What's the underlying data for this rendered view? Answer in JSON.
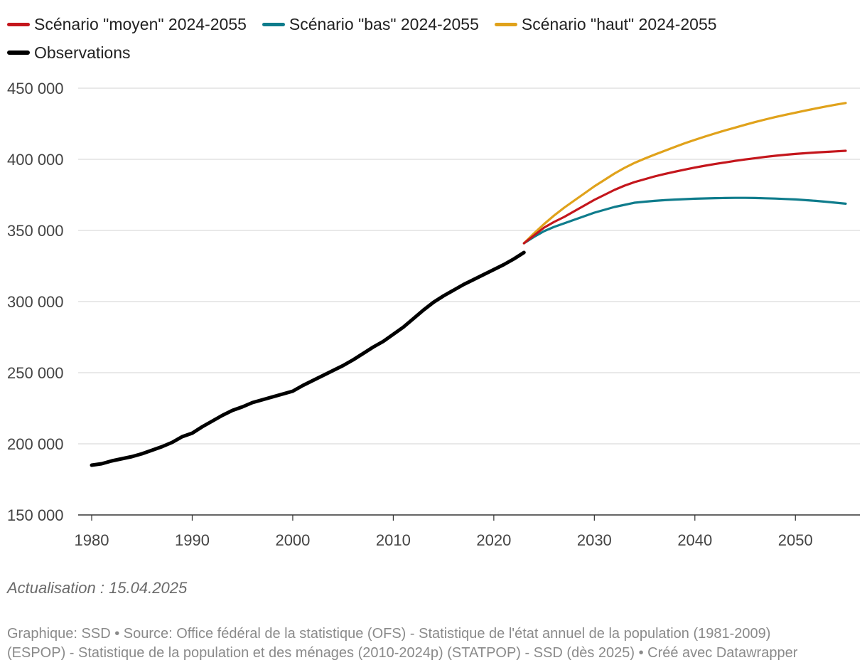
{
  "legend": {
    "moyen": "Scénario \"moyen\" 2024-2055",
    "bas": "Scénario \"bas\" 2024-2055",
    "haut": "Scénario \"haut\" 2024-2055",
    "observations": "Observations"
  },
  "colors": {
    "moyen": "#c4161c",
    "bas": "#0f7c8c",
    "haut": "#e0a21b",
    "observations": "#000000",
    "grid": "#d3d3d3"
  },
  "footer": {
    "updated": "Actualisation : 15.04.2025",
    "source_line1": "Graphique: SSD • Source: Office fédéral de la statistique (OFS) - Statistique de l'état annuel de la population (1981-2009)",
    "source_line2": "(ESPOP) - Statistique de la population et des ménages (2010-2024p) (STATPOP) - SSD (dès 2025) • Créé avec Datawrapper"
  },
  "chart_data": {
    "type": "line",
    "title": "",
    "xlabel": "",
    "ylabel": "",
    "xlim": [
      1980,
      2055
    ],
    "ylim": [
      150000,
      450000
    ],
    "y_ticks": [
      150000,
      200000,
      250000,
      300000,
      350000,
      400000,
      450000
    ],
    "y_tick_labels": [
      "150 000",
      "200 000",
      "250 000",
      "300 000",
      "350 000",
      "400 000",
      "450 000"
    ],
    "x_ticks": [
      1980,
      1990,
      2000,
      2010,
      2020,
      2030,
      2040,
      2050
    ],
    "x_tick_labels": [
      "1980",
      "1990",
      "2000",
      "2010",
      "2020",
      "2030",
      "2040",
      "2050"
    ],
    "grid": true,
    "legend_position": "top-left",
    "series": [
      {
        "key": "observations",
        "name": "Observations",
        "x": [
          1980,
          1981,
          1982,
          1983,
          1984,
          1985,
          1986,
          1987,
          1988,
          1989,
          1990,
          1991,
          1992,
          1993,
          1994,
          1995,
          1996,
          1997,
          1998,
          1999,
          2000,
          2001,
          2002,
          2003,
          2004,
          2005,
          2006,
          2007,
          2008,
          2009,
          2010,
          2011,
          2012,
          2013,
          2014,
          2015,
          2016,
          2017,
          2018,
          2019,
          2020,
          2021,
          2022,
          2023
        ],
        "values": [
          185000,
          186000,
          188000,
          189500,
          191000,
          193000,
          195500,
          198000,
          201000,
          205000,
          207500,
          212000,
          216000,
          220000,
          223500,
          226000,
          229000,
          231000,
          233000,
          235000,
          237000,
          241000,
          244500,
          248000,
          251500,
          255000,
          259000,
          263500,
          268000,
          272000,
          277000,
          282000,
          288000,
          294000,
          299500,
          304000,
          308000,
          312000,
          315500,
          319000,
          322500,
          326000,
          330000,
          334500
        ]
      },
      {
        "key": "bas",
        "name": "Scénario \"bas\" 2024-2055",
        "x": [
          2023,
          2024,
          2025,
          2026,
          2027,
          2028,
          2029,
          2030,
          2031,
          2032,
          2033,
          2034,
          2035,
          2036,
          2037,
          2038,
          2039,
          2040,
          2041,
          2042,
          2043,
          2044,
          2045,
          2046,
          2047,
          2048,
          2049,
          2050,
          2051,
          2052,
          2053,
          2054,
          2055
        ],
        "values": [
          341000,
          345500,
          349500,
          352500,
          355000,
          357500,
          360000,
          362500,
          364500,
          366500,
          368000,
          369500,
          370200,
          370800,
          371300,
          371700,
          372000,
          372300,
          372500,
          372700,
          372800,
          372900,
          372900,
          372800,
          372600,
          372400,
          372100,
          371800,
          371300,
          370800,
          370200,
          369500,
          368800
        ]
      },
      {
        "key": "moyen",
        "name": "Scénario \"moyen\" 2024-2055",
        "x": [
          2023,
          2024,
          2025,
          2026,
          2027,
          2028,
          2029,
          2030,
          2031,
          2032,
          2033,
          2034,
          2035,
          2036,
          2037,
          2038,
          2039,
          2040,
          2041,
          2042,
          2043,
          2044,
          2045,
          2046,
          2047,
          2048,
          2049,
          2050,
          2051,
          2052,
          2053,
          2054,
          2055
        ],
        "values": [
          341000,
          346500,
          352000,
          356000,
          359500,
          363500,
          367500,
          371500,
          375000,
          378500,
          381500,
          384000,
          386000,
          388000,
          389700,
          391300,
          392800,
          394200,
          395500,
          396700,
          397800,
          398900,
          399900,
          400800,
          401700,
          402500,
          403200,
          403800,
          404300,
          404800,
          405200,
          405600,
          406000
        ]
      },
      {
        "key": "haut",
        "name": "Scénario \"haut\" 2024-2055",
        "x": [
          2023,
          2024,
          2025,
          2026,
          2027,
          2028,
          2029,
          2030,
          2031,
          2032,
          2033,
          2034,
          2035,
          2036,
          2037,
          2038,
          2039,
          2040,
          2041,
          2042,
          2043,
          2044,
          2045,
          2046,
          2047,
          2048,
          2049,
          2050,
          2051,
          2052,
          2053,
          2054,
          2055
        ],
        "values": [
          341000,
          348000,
          354500,
          360500,
          366000,
          371000,
          376000,
          381000,
          385500,
          390000,
          394000,
          397500,
          400500,
          403300,
          406000,
          408700,
          411300,
          413700,
          416000,
          418200,
          420300,
          422300,
          424300,
          426200,
          428000,
          429700,
          431300,
          432800,
          434300,
          435700,
          437100,
          438400,
          439600
        ]
      }
    ]
  }
}
